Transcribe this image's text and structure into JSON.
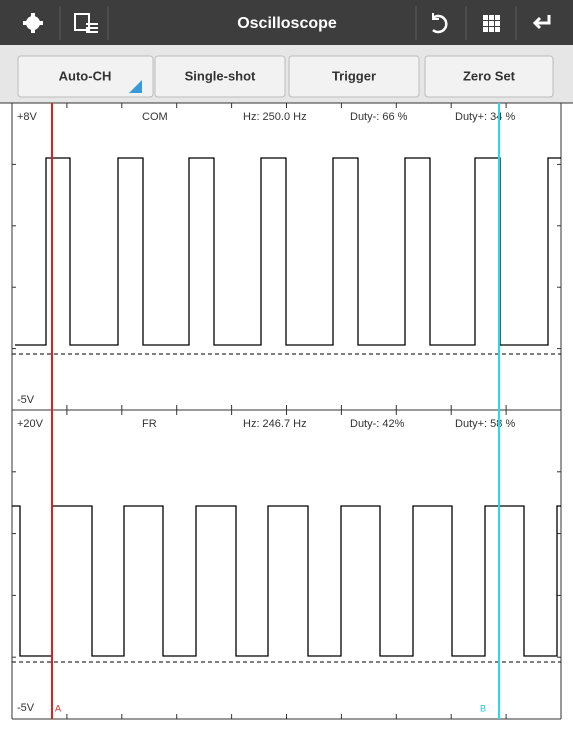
{
  "toolbar": {
    "title": "Oscilloscope"
  },
  "buttons": [
    "Auto-CH",
    "Single-shot",
    "Trigger",
    "Zero Set"
  ],
  "channels": [
    {
      "top_label": "+8V",
      "name": "COM",
      "frequency": "Hz: 250.0 Hz",
      "duty_minus": "Duty-: 66 %",
      "duty_plus": "Duty+: 34 %",
      "bottom_label": "-5V"
    },
    {
      "top_label": "+20V",
      "name": "FR",
      "frequency": "Hz: 246.7 Hz",
      "duty_minus": "Duty-: 42%",
      "duty_plus": "Duty+: 58 %",
      "bottom_label": "-5V"
    }
  ],
  "cursors": {
    "a": "A",
    "b": "B"
  }
}
